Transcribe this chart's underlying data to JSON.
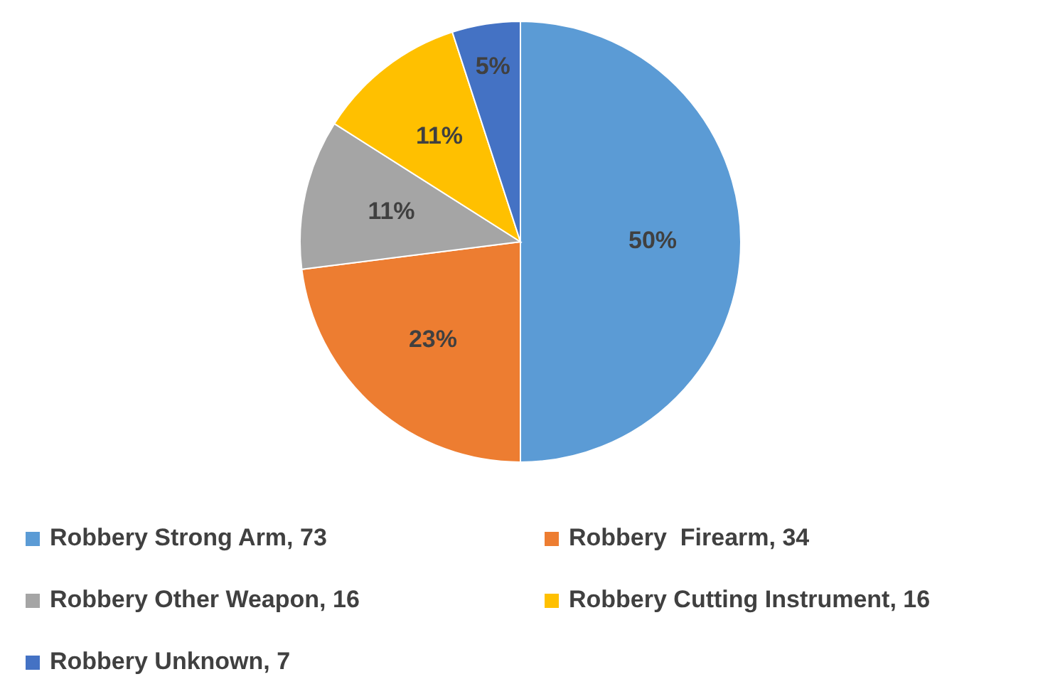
{
  "chart_data": {
    "type": "pie",
    "categories": [
      "Robbery Strong Arm, 73",
      "Robbery  Firearm, 34",
      "Robbery Other Weapon, 16",
      "Robbery Cutting Instrument, 16",
      "Robbery Unknown, 7"
    ],
    "values": [
      50,
      23,
      11,
      11,
      5
    ],
    "colors": [
      "#5b9bd5",
      "#ed7d31",
      "#a5a5a5",
      "#ffc000",
      "#4472c4"
    ],
    "value_labels": [
      "50%",
      "23%",
      "11%",
      "11%",
      "5%"
    ],
    "legend": "bottom"
  }
}
